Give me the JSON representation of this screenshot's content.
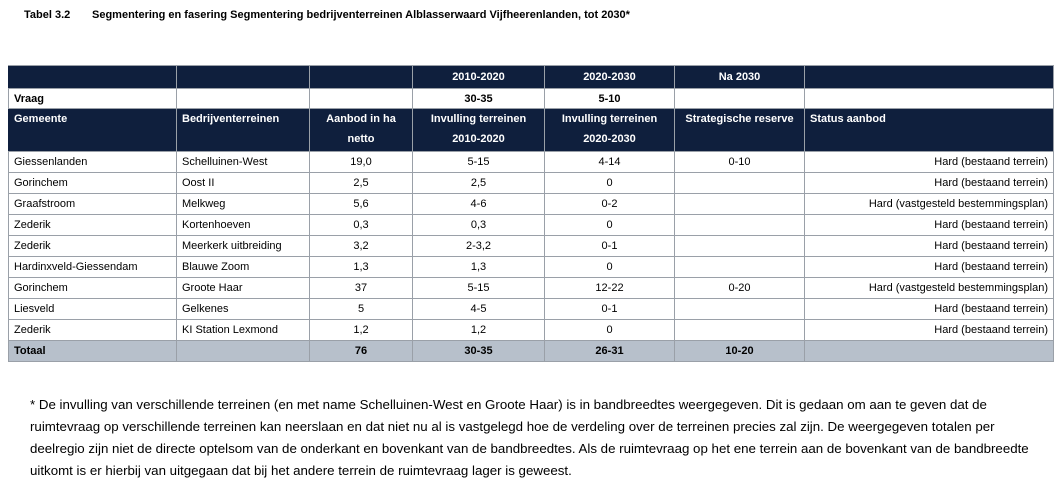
{
  "caption": {
    "number": "Tabel 3.2",
    "title": "Segmentering en fasering Segmentering bedrijventerreinen Alblasserwaard Vijfheerenlanden, tot 2030*"
  },
  "table": {
    "period_headers": [
      "",
      "",
      "",
      "2010-2020",
      "2020-2030",
      "Na 2030",
      ""
    ],
    "vraag_row": [
      "Vraag",
      "",
      "",
      "30-35",
      "5-10",
      "",
      ""
    ],
    "column_headers": [
      [
        "Gemeente",
        ""
      ],
      [
        "Bedrijventerreinen",
        ""
      ],
      [
        "Aanbod in ha",
        "netto"
      ],
      [
        "Invulling terreinen",
        "2010-2020"
      ],
      [
        "Invulling terreinen",
        "2020-2030"
      ],
      [
        "Strategische reserve",
        ""
      ],
      [
        "Status aanbod",
        ""
      ]
    ],
    "rows": [
      [
        "Giessenlanden",
        "Schelluinen-West",
        "19,0",
        "5-15",
        "4-14",
        "0-10",
        "Hard (bestaand terrein)"
      ],
      [
        "Gorinchem",
        "Oost II",
        "2,5",
        "2,5",
        "0",
        "",
        "Hard (bestaand terrein)"
      ],
      [
        "Graafstroom",
        "Melkweg",
        "5,6",
        "4-6",
        "0-2",
        "",
        "Hard (vastgesteld bestemmingsplan)"
      ],
      [
        "Zederik",
        "Kortenhoeven",
        "0,3",
        "0,3",
        "0",
        "",
        "Hard (bestaand terrein)"
      ],
      [
        "Zederik",
        "Meerkerk uitbreiding",
        "3,2",
        "2-3,2",
        "0-1",
        "",
        "Hard (bestaand terrein)"
      ],
      [
        "Hardinxveld-Giessendam",
        "Blauwe Zoom",
        "1,3",
        "1,3",
        "0",
        "",
        "Hard (bestaand terrein)"
      ],
      [
        "Gorinchem",
        "Groote Haar",
        "37",
        "5-15",
        "12-22",
        "0-20",
        "Hard (vastgesteld bestemmingsplan)"
      ],
      [
        "Liesveld",
        "Gelkenes",
        "5",
        "4-5",
        "0-1",
        "",
        "Hard (bestaand terrein)"
      ],
      [
        "Zederik",
        "KI Station Lexmond",
        "1,2",
        "1,2",
        "0",
        "",
        "Hard (bestaand terrein)"
      ]
    ],
    "total_row": [
      "Totaal",
      "",
      "76",
      "30-35",
      "26-31",
      "10-20",
      ""
    ]
  },
  "footnote": "* De invulling van verschillende terreinen (en met name Schelluinen-West en Groote Haar) is in bandbreedtes weergegeven. Dit is gedaan om aan te geven dat de ruimtevraag op verschillende terreinen kan neerslaan en dat niet nu al is vastgelegd hoe de verdeling over de terreinen precies zal zijn. De weergegeven totalen per deelregio zijn niet de directe optelsom van de onderkant en bovenkant van de bandbreedtes. Als de ruimtevraag op het ene terrein aan de bovenkant van de bandbreedte uitkomt is er hierbij van uitgegaan dat bij het andere terrein de ruimtevraag lager is geweest."
}
